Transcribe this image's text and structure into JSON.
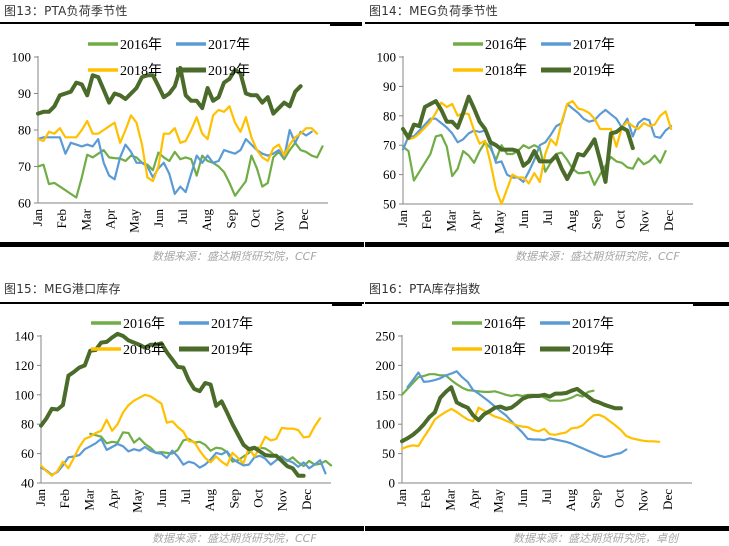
{
  "panels": [
    {
      "title": "图13：PTA负荷季节性",
      "source": "数据来源：盛达期货研究院，CCF"
    },
    {
      "title": "图14：MEG负荷季节性",
      "source": "数据来源：盛达期货研究院，CCF"
    },
    {
      "title": "图15：MEG港口库存",
      "source": "数据来源：盛达期货研究院，CCF"
    },
    {
      "title": "图16：PTA库存指数",
      "source": "数据来源：盛达期货研究院，卓创"
    }
  ],
  "series_colors": {
    "2016年": "#70ad47",
    "2017年": "#5b9bd5",
    "2018年": "#ffc000",
    "2019年": "#4a6b2a"
  },
  "chart_data": [
    {
      "type": "line",
      "title": "图13：PTA负荷季节性",
      "xlabel": "",
      "ylabel": "",
      "ylim": [
        60,
        100
      ],
      "yticks": [
        60,
        70,
        80,
        90,
        100
      ],
      "categories": [
        "Jan",
        "Feb",
        "Mar",
        "Apr",
        "May",
        "Jun",
        "Jul",
        "Aug",
        "Sep",
        "Oct",
        "Nov",
        "Dec"
      ],
      "grid": false,
      "legend": "top-center",
      "series": [
        {
          "name": "2016年",
          "start_week": 1,
          "values": [
            70.0,
            70.5,
            65.2,
            65.5,
            64.5,
            63.5,
            62.5,
            61.5,
            67.0,
            73.2,
            72.5,
            73.5,
            74.5,
            72.5,
            72.3,
            72.2,
            71.5,
            73.0,
            72.5,
            71.0,
            70.5,
            69.0,
            73.8,
            72.5,
            71.5,
            74.0,
            72.0,
            72.5,
            72.0,
            67.5,
            73.0,
            71.5,
            71.0,
            70.0,
            68.5,
            65.5,
            62.0,
            64.0,
            66.0,
            73.0,
            69.5,
            64.5,
            65.5,
            72.5,
            74.0,
            72.0,
            74.5,
            76.5,
            74.5,
            74.0,
            73.0,
            72.5,
            75.5
          ]
        },
        {
          "name": "2017年",
          "start_week": 1,
          "values": [
            77.5,
            78.0,
            78.0,
            78.0,
            78.0,
            73.5,
            76.5,
            76.0,
            75.5,
            76.0,
            75.5,
            77.5,
            71.0,
            67.5,
            66.5,
            72.5,
            76.0,
            74.0,
            71.0,
            71.0,
            70.0,
            67.0,
            69.5,
            71.0,
            68.0,
            62.5,
            64.5,
            63.0,
            68.0,
            73.0,
            71.0,
            73.0,
            71.0,
            71.5,
            74.5,
            74.0,
            73.5,
            74.5,
            77.5,
            76.0,
            74.5,
            73.5,
            73.0,
            73.5,
            74.5,
            72.5,
            80.0,
            76.5,
            79.5,
            78.5,
            79.5
          ]
        },
        {
          "name": "2018年",
          "start_week": 1,
          "values": [
            77.5,
            77.0,
            79.5,
            79.0,
            80.5,
            78.0,
            78.0,
            78.0,
            80.0,
            82.5,
            79.0,
            79.0,
            80.0,
            81.0,
            82.0,
            76.5,
            80.0,
            84.0,
            82.0,
            76.0,
            67.0,
            66.0,
            70.0,
            79.0,
            79.0,
            80.5,
            76.5,
            77.0,
            80.0,
            83.5,
            79.0,
            77.5,
            84.0,
            85.5,
            85.0,
            86.5,
            82.0,
            79.5,
            83.5,
            78.0,
            74.5,
            72.5,
            71.5,
            75.0,
            76.0,
            73.0,
            76.0,
            78.0,
            79.0,
            80.5,
            80.5,
            79.0
          ]
        },
        {
          "name": "2019年",
          "start_week": 1,
          "values": [
            84.5,
            85.0,
            85.0,
            86.5,
            89.5,
            90.0,
            90.5,
            93.0,
            92.5,
            89.5,
            95.0,
            94.5,
            91.0,
            87.5,
            90.0,
            89.5,
            88.5,
            90.0,
            91.5,
            94.5,
            95.0,
            95.0,
            92.0,
            89.0,
            90.0,
            92.0,
            97.0,
            89.5,
            88.0,
            88.0,
            86.0,
            91.5,
            88.0,
            89.0,
            93.0,
            94.0,
            96.5,
            95.5,
            90.0,
            89.5,
            89.5,
            87.5,
            89.0,
            84.5,
            86.0,
            87.5,
            86.5,
            90.5,
            92.0
          ]
        }
      ]
    },
    {
      "type": "line",
      "title": "图14：MEG负荷季节性",
      "xlabel": "",
      "ylabel": "",
      "ylim": [
        50,
        100
      ],
      "yticks": [
        50,
        60,
        70,
        80,
        90,
        100
      ],
      "categories": [
        "Jan",
        "Feb",
        "Mar",
        "Apr",
        "May",
        "Jun",
        "Jul",
        "Aug",
        "Sep",
        "Oct",
        "Nov",
        "Dec"
      ],
      "grid": false,
      "legend": "top-center",
      "series": [
        {
          "name": "2016年",
          "start_week": 1,
          "values": [
            69.5,
            68.0,
            58.0,
            61.0,
            64.0,
            67.0,
            73.0,
            73.5,
            69.5,
            59.5,
            62.0,
            68.0,
            66.5,
            64.0,
            68.0,
            71.0,
            69.0,
            65.0,
            70.0,
            67.0,
            67.0,
            68.0,
            70.0,
            69.0,
            70.0,
            69.0,
            61.0,
            64.0,
            67.0,
            67.5,
            65.0,
            62.0,
            60.5,
            60.5,
            61.0,
            56.5,
            60.0,
            63.0,
            66.0,
            64.5,
            64.0,
            62.5,
            62.0,
            65.5,
            63.5,
            64.5,
            66.5,
            64.0,
            68.0
          ]
        },
        {
          "name": "2017年",
          "start_week": 1,
          "values": [
            68.5,
            73.0,
            73.0,
            75.0,
            77.0,
            79.0,
            79.0,
            77.5,
            76.0,
            74.0,
            71.0,
            72.0,
            74.0,
            75.0,
            74.5,
            75.0,
            70.0,
            64.0,
            64.5,
            60.0,
            59.0,
            59.0,
            57.5,
            61.0,
            65.0,
            70.0,
            71.0,
            73.5,
            76.5,
            77.5,
            84.0,
            82.5,
            81.0,
            79.0,
            78.0,
            78.5,
            80.5,
            82.0,
            80.5,
            79.0,
            76.0,
            79.0,
            73.0,
            77.5,
            79.0,
            78.5,
            73.0,
            72.5,
            75.0,
            76.5
          ]
        },
        {
          "name": "2018年",
          "start_week": 1,
          "values": [
            75.0,
            72.0,
            72.5,
            74.0,
            76.0,
            78.0,
            81.0,
            84.5,
            83.0,
            84.0,
            80.0,
            81.0,
            80.5,
            75.0,
            70.5,
            71.5,
            64.0,
            55.0,
            50.0,
            55.0,
            60.0,
            59.0,
            59.0,
            57.0,
            60.5,
            57.5,
            67.0,
            72.0,
            70.0,
            78.0,
            84.0,
            85.0,
            82.5,
            82.0,
            81.0,
            79.0,
            75.5,
            75.5,
            75.5,
            69.5,
            76.0,
            78.0,
            76.5,
            75.5,
            77.5,
            76.5,
            77.0,
            80.0,
            81.5,
            75.5
          ]
        },
        {
          "name": "2019年",
          "start_week": 1,
          "values": [
            75.5,
            72.5,
            77.0,
            76.5,
            83.0,
            84.0,
            85.0,
            82.0,
            78.0,
            78.0,
            76.0,
            81.0,
            86.5,
            82.5,
            78.0,
            75.5,
            71.0,
            70.0,
            68.5,
            68.5,
            68.5,
            68.0,
            63.0,
            64.5,
            68.0,
            64.5,
            64.5,
            64.5,
            66.5,
            62.0,
            58.5,
            62.0,
            67.0,
            66.5,
            69.0,
            72.0,
            65.0,
            57.5,
            74.0,
            74.5,
            76.0,
            75.0,
            69.0
          ]
        }
      ]
    },
    {
      "type": "line",
      "title": "图15：MEG港口库存",
      "xlabel": "",
      "ylabel": "",
      "ylim": [
        40,
        140
      ],
      "yticks": [
        40,
        60,
        80,
        100,
        120,
        140
      ],
      "categories": [
        "Jan",
        "Feb",
        "Mar",
        "Apr",
        "May",
        "Jun",
        "Jul",
        "Aug",
        "Sep",
        "Oct",
        "Nov",
        "Dec"
      ],
      "grid": false,
      "legend": "top-center",
      "series": [
        {
          "name": "2016年",
          "start_week": 10,
          "values": [
            73.5,
            72.5,
            71.5,
            67.0,
            68.0,
            67.5,
            74.5,
            74.0,
            67.5,
            70.5,
            66.5,
            64.0,
            60.5,
            61.0,
            60.5,
            60.0,
            62.5,
            69.0,
            70.0,
            67.5,
            68.0,
            66.0,
            62.0,
            64.0,
            63.5,
            61.0,
            54.5,
            55.5,
            58.0,
            60.5,
            64.0,
            64.0,
            63.5,
            61.0,
            57.5,
            58.0,
            55.0,
            57.5,
            54.0,
            51.5,
            55.0,
            52.5,
            53.0,
            55.0,
            52.0
          ]
        },
        {
          "name": "2017年",
          "start_week": 1,
          "values": [
            50.5,
            48.5,
            45.5,
            47.5,
            52.0,
            57.5,
            58.0,
            59.0,
            63.0,
            65.0,
            67.0,
            70.0,
            62.5,
            64.5,
            66.5,
            65.0,
            61.5,
            63.0,
            62.0,
            64.5,
            62.0,
            60.5,
            60.0,
            57.0,
            62.0,
            58.0,
            52.5,
            54.5,
            53.5,
            50.5,
            52.5,
            56.0,
            60.5,
            59.5,
            61.5,
            56.5,
            54.0,
            52.0,
            52.5,
            57.5,
            58.5,
            56.5,
            52.5,
            55.5,
            57.5,
            55.5,
            54.0,
            51.0,
            54.0,
            50.0,
            52.5,
            55.5,
            46.5
          ]
        },
        {
          "name": "2018年",
          "start_week": 1,
          "values": [
            52.0,
            48.0,
            45.0,
            48.0,
            54.5,
            50.0,
            57.0,
            64.5,
            70.0,
            71.5,
            74.0,
            75.5,
            83.0,
            75.5,
            80.0,
            88.0,
            93.0,
            96.0,
            98.0,
            100.0,
            99.0,
            96.5,
            94.0,
            81.0,
            82.0,
            78.0,
            75.0,
            68.5,
            68.0,
            62.0,
            57.0,
            54.0,
            58.0,
            54.5,
            52.0,
            60.5,
            57.0,
            53.5,
            64.0,
            58.0,
            64.0,
            71.5,
            69.0,
            70.0,
            77.5,
            77.0,
            77.0,
            76.0,
            71.0,
            71.5,
            78.5,
            84.0
          ]
        },
        {
          "name": "2019年",
          "start_week": 1,
          "values": [
            79.0,
            84.0,
            90.5,
            90.0,
            93.0,
            113.0,
            115.5,
            118.5,
            120.0,
            130.0,
            130.5,
            135.5,
            136.0,
            139.0,
            141.5,
            140.0,
            137.0,
            135.5,
            134.0,
            132.0,
            134.0,
            134.0,
            135.0,
            129.0,
            124.0,
            119.0,
            118.5,
            110.0,
            104.0,
            102.5,
            108.0,
            107.0,
            92.5,
            95.5,
            88.0,
            80.0,
            73.0,
            66.0,
            63.0,
            64.0,
            61.5,
            59.0,
            58.5,
            58.5,
            55.0,
            51.5,
            50.0,
            45.0,
            45.0
          ]
        }
      ]
    },
    {
      "type": "line",
      "title": "图16：PTA库存指数",
      "xlabel": "",
      "ylabel": "",
      "ylim": [
        0,
        250
      ],
      "yticks": [
        0,
        50,
        100,
        150,
        200,
        250
      ],
      "categories": [
        "Jan",
        "Feb",
        "Mar",
        "Apr",
        "May",
        "Jun",
        "Jul",
        "Aug",
        "Sep",
        "Oct",
        "Nov",
        "Dec"
      ],
      "grid": false,
      "legend": "top-center",
      "series": [
        {
          "name": "2016年",
          "start_week": 1,
          "values": [
            150,
            160,
            170,
            180,
            182,
            185,
            185,
            183,
            183,
            175,
            168,
            162,
            158,
            157,
            156,
            155,
            155,
            156,
            153,
            150,
            148,
            150,
            148,
            150,
            150,
            150,
            145,
            140,
            140,
            140,
            142,
            145,
            150,
            147,
            155,
            157
          ]
        },
        {
          "name": "2017年",
          "start_week": 2,
          "values": [
            163,
            175,
            188,
            172,
            173,
            175,
            178,
            183,
            186,
            190,
            180,
            172,
            158,
            152,
            145,
            138,
            130,
            122,
            115,
            105,
            95,
            86,
            75,
            74,
            74,
            73,
            76,
            74,
            72,
            70,
            67,
            63,
            59,
            55,
            51,
            47,
            44,
            46,
            49,
            51,
            57
          ]
        },
        {
          "name": "2018年",
          "start_week": 1,
          "values": [
            58,
            62,
            64,
            63,
            78,
            92,
            108,
            115,
            121,
            126,
            121,
            114,
            108,
            105,
            128,
            123,
            118,
            113,
            110,
            106,
            102,
            98,
            96,
            95,
            90,
            88,
            92,
            83,
            82,
            84,
            86,
            93,
            94,
            98,
            107,
            115,
            116,
            112,
            105,
            98,
            90,
            80,
            76,
            74,
            72,
            71,
            71,
            70
          ]
        },
        {
          "name": "2019年",
          "start_week": 1,
          "values": [
            71,
            76,
            82,
            90,
            100,
            112,
            120,
            145,
            155,
            163,
            137,
            132,
            128,
            115,
            107,
            117,
            122,
            128,
            130,
            126,
            128,
            135,
            143,
            147,
            148,
            148,
            150,
            147,
            152,
            152,
            153,
            157,
            160,
            153,
            147,
            140,
            137,
            133,
            130,
            127,
            127
          ]
        }
      ]
    }
  ]
}
